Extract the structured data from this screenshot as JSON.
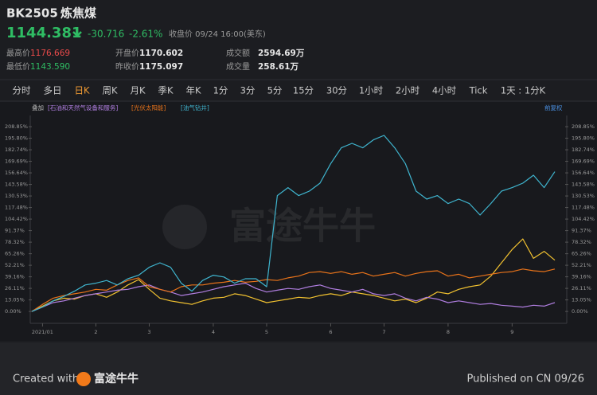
{
  "header": {
    "code": "BK2505",
    "name": "炼焦煤",
    "price": "1144.381",
    "change": "-30.716",
    "change_pct": "-2.61%",
    "status": "收盘价 09/24 16:00(美东)"
  },
  "stats": [
    {
      "label": "最高价",
      "value": "1176.669"
    },
    {
      "label": "开盘价",
      "value": "1170.602"
    },
    {
      "label": "成交额",
      "value": "2594.69万"
    },
    {
      "label": "最低价",
      "value": "1143.590"
    },
    {
      "label": "昨收价",
      "value": "1175.097"
    },
    {
      "label": "成交量",
      "value": "258.61万"
    }
  ],
  "tabs": [
    "分时",
    "多日",
    "日K",
    "周K",
    "月K",
    "季K",
    "年K",
    "1分",
    "3分",
    "5分",
    "15分",
    "30分",
    "1小时",
    "2小时",
    "4小时",
    "Tick",
    "1天 : 1分K"
  ],
  "overlay": {
    "label": "叠加",
    "adjust": "前复权"
  },
  "watermark": "富途牛牛",
  "footer": {
    "created": "Created with",
    "brand": "富途牛牛",
    "published": "Published on CN 09/26"
  },
  "chart_data": {
    "type": "line",
    "categories": [
      null,
      "2021/01",
      null,
      null,
      null,
      null,
      "2",
      null,
      null,
      null,
      null,
      "3",
      null,
      null,
      null,
      null,
      null,
      "4",
      null,
      null,
      null,
      null,
      "5",
      null,
      null,
      null,
      null,
      null,
      "6",
      null,
      null,
      null,
      null,
      "7",
      null,
      null,
      null,
      null,
      null,
      "8",
      null,
      null,
      null,
      null,
      null,
      "9",
      null,
      null,
      null,
      null
    ],
    "series": [
      {
        "name": "[石油和天然气设备和服务]",
        "color": "#b07ee0",
        "values": [
          0,
          5,
          10,
          12,
          15,
          18,
          20,
          22,
          24,
          25,
          28,
          30,
          25,
          22,
          18,
          20,
          22,
          25,
          28,
          30,
          32,
          26,
          22,
          24,
          26,
          25,
          28,
          30,
          26,
          24,
          22,
          25,
          20,
          18,
          20,
          15,
          12,
          16,
          14,
          10,
          12,
          10,
          8,
          9,
          7,
          6,
          5,
          7,
          6,
          10
        ]
      },
      {
        "name": "[光伏太阳能]",
        "color": "#e8731a",
        "values": [
          0,
          8,
          15,
          18,
          20,
          22,
          25,
          24,
          30,
          35,
          38,
          28,
          25,
          22,
          28,
          30,
          30,
          32,
          33,
          35,
          33,
          34,
          36,
          35,
          38,
          40,
          44,
          45,
          43,
          45,
          42,
          44,
          40,
          42,
          44,
          40,
          43,
          45,
          46,
          40,
          42,
          38,
          40,
          42,
          44,
          45,
          48,
          46,
          45,
          48
        ]
      },
      {
        "name": "[油气钻井]",
        "color": "#3fb5cf",
        "values": [
          0,
          5,
          12,
          17,
          23,
          30,
          32,
          35,
          30,
          37,
          41,
          50,
          55,
          50,
          32,
          23,
          35,
          41,
          39,
          32,
          37,
          37,
          28,
          131,
          140,
          131,
          136,
          145,
          167,
          185,
          190,
          185,
          194,
          199,
          185,
          167,
          136,
          127,
          131,
          122,
          127,
          122,
          109,
          122,
          136,
          140,
          145,
          154,
          140,
          158
        ]
      },
      {
        "color": "#f2c230",
        "values": [
          0,
          6,
          12,
          15,
          14,
          18,
          20,
          16,
          22,
          30,
          36,
          25,
          15,
          12,
          10,
          8,
          12,
          15,
          16,
          20,
          18,
          14,
          10,
          12,
          14,
          16,
          15,
          18,
          20,
          18,
          22,
          20,
          18,
          15,
          12,
          14,
          10,
          15,
          22,
          20,
          25,
          28,
          30,
          40,
          55,
          70,
          82,
          60,
          68,
          58
        ]
      }
    ],
    "ylim": [
      -8,
      217
    ],
    "yticks": [
      {
        "value": 0,
        "label": "0.00%"
      },
      {
        "value": 13.05,
        "label": "13.05%"
      },
      {
        "value": 26.11,
        "label": "26.11%"
      },
      {
        "value": 39.16,
        "label": "39.16%"
      },
      {
        "value": 52.21,
        "label": "52.21%"
      },
      {
        "value": 65.26,
        "label": "65.26%"
      },
      {
        "value": 78.32,
        "label": "78.32%"
      },
      {
        "value": 91.37,
        "label": "91.37%"
      },
      {
        "value": 104.42,
        "label": "104.42%"
      },
      {
        "value": 117.48,
        "label": "117.48%"
      },
      {
        "value": 130.53,
        "label": "130.53%"
      },
      {
        "value": 143.58,
        "label": "143.58%"
      },
      {
        "value": 156.64,
        "label": "156.64%"
      },
      {
        "value": 169.69,
        "label": "169.69%"
      },
      {
        "value": 182.74,
        "label": "182.74%"
      },
      {
        "value": 195.8,
        "label": "195.80%"
      },
      {
        "value": 208.85,
        "label": "208.85%"
      }
    ]
  }
}
